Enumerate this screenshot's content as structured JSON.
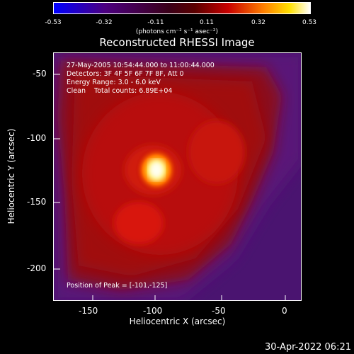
{
  "colorbar": {
    "ticks": [
      "-0.53",
      "-0.32",
      "-0.11",
      "0.11",
      "0.32",
      "0.53"
    ],
    "units": "(photons cm⁻² s⁻¹ asec⁻²)"
  },
  "title": "Reconstructed RHESSI Image",
  "info": {
    "time": "27-May-2005 10:54:44.000 to 11:00:44.000",
    "detectors": "Detectors: 3F 4F 5F 6F 7F 8F, Att 0",
    "energy": "Energy Range: 3.0 - 6.0 keV",
    "method": "Clean    Total counts: 6.89E+04"
  },
  "peak": "Position of Peak = [-101,-125]",
  "axes": {
    "xlabel": "Heliocentric X (arcsec)",
    "ylabel": "Heliocentric Y (arcsec)",
    "xticks": [
      "-150",
      "-100",
      "-50",
      "0"
    ],
    "yticks": [
      "-50",
      "-100",
      "-150",
      "-200"
    ]
  },
  "footer_date": "30-Apr-2022 06:21",
  "colors": {
    "background": "#000000",
    "foreground": "#ffffff"
  }
}
